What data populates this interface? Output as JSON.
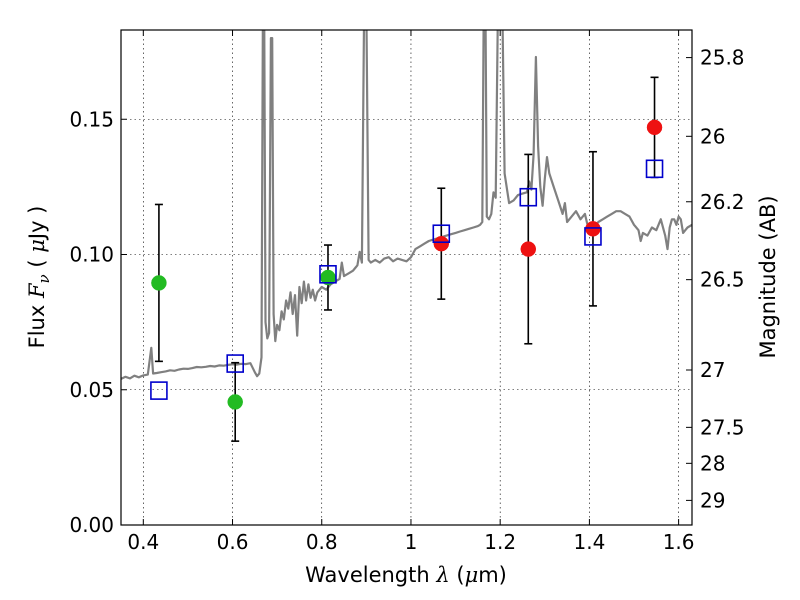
{
  "chart_data": {
    "type": "scatter",
    "xlabel": "Wavelength",
    "xlabel_symbol": "λ",
    "xlabel_unit_open": " (",
    "xlabel_unit_mu": "μ",
    "xlabel_unit_rest": "m)",
    "ylabel": "Flux",
    "ylabel_symbol": "F",
    "ylabel_symbol_sub": "ν",
    "ylabel_unit_open": " ( ",
    "ylabel_unit_mu": "μ",
    "ylabel_unit_rest": "Jy )",
    "ylabel_right": "Magnitude (AB)",
    "xlim": [
      0.35,
      1.63
    ],
    "ylim": [
      0.0,
      0.183
    ],
    "grid": true,
    "x_ticks": [
      0.4,
      0.6,
      0.8,
      1.0,
      1.2,
      1.4,
      1.6
    ],
    "x_tick_labels": [
      "0.4",
      "0.6",
      "0.8",
      "1",
      "1.2",
      "1.4",
      "1.6"
    ],
    "y_ticks": [
      0.0,
      0.05,
      0.1,
      0.15
    ],
    "y_tick_labels": [
      "0.00",
      "0.05",
      "0.10",
      "0.15"
    ],
    "mag_ticks": [
      {
        "label": "25.8",
        "flux": 0.1728
      },
      {
        "label": "26",
        "flux": 0.1437
      },
      {
        "label": "26.2",
        "flux": 0.1195
      },
      {
        "label": "26.5",
        "flux": 0.0907
      },
      {
        "label": "27",
        "flux": 0.0573
      },
      {
        "label": "27.5",
        "flux": 0.0361
      },
      {
        "label": "28",
        "flux": 0.0228
      },
      {
        "label": "29",
        "flux": 0.0091
      }
    ],
    "series": [
      {
        "name": "observed_green",
        "marker": "circle",
        "color": "#22bb22",
        "points": [
          {
            "x": 0.435,
            "y": 0.0895,
            "err": 0.029
          },
          {
            "x": 0.606,
            "y": 0.0455,
            "err": 0.0145
          },
          {
            "x": 0.814,
            "y": 0.0915,
            "err": 0.012
          }
        ]
      },
      {
        "name": "observed_red",
        "marker": "circle",
        "color": "#ee1111",
        "points": [
          {
            "x": 1.068,
            "y": 0.104,
            "err": 0.0205
          },
          {
            "x": 1.263,
            "y": 0.102,
            "err": 0.035
          },
          {
            "x": 1.408,
            "y": 0.1095,
            "err": 0.0285
          },
          {
            "x": 1.546,
            "y": 0.147,
            "err": 0.0185
          }
        ]
      },
      {
        "name": "model_synthetic",
        "marker": "square",
        "color": "#0000cc",
        "points": [
          {
            "x": 0.435,
            "y": 0.0495
          },
          {
            "x": 0.606,
            "y": 0.0595
          },
          {
            "x": 0.814,
            "y": 0.0925
          },
          {
            "x": 1.068,
            "y": 0.1075
          },
          {
            "x": 1.263,
            "y": 0.121
          },
          {
            "x": 1.408,
            "y": 0.1065
          },
          {
            "x": 1.546,
            "y": 0.1315
          }
        ]
      }
    ],
    "spectrum": {
      "color": "#808080",
      "points": [
        [
          0.35,
          0.054
        ],
        [
          0.36,
          0.0548
        ],
        [
          0.37,
          0.0542
        ],
        [
          0.38,
          0.0552
        ],
        [
          0.39,
          0.0546
        ],
        [
          0.4,
          0.0553
        ],
        [
          0.41,
          0.0556
        ],
        [
          0.418,
          0.0655
        ],
        [
          0.422,
          0.056
        ],
        [
          0.43,
          0.0562
        ],
        [
          0.44,
          0.0565
        ],
        [
          0.45,
          0.0568
        ],
        [
          0.46,
          0.0572
        ],
        [
          0.47,
          0.057
        ],
        [
          0.48,
          0.0575
        ],
        [
          0.49,
          0.0578
        ],
        [
          0.5,
          0.0577
        ],
        [
          0.51,
          0.058
        ],
        [
          0.52,
          0.0584
        ],
        [
          0.53,
          0.0583
        ],
        [
          0.54,
          0.0585
        ],
        [
          0.55,
          0.0588
        ],
        [
          0.56,
          0.0586
        ],
        [
          0.57,
          0.059
        ],
        [
          0.58,
          0.0589
        ],
        [
          0.59,
          0.0592
        ],
        [
          0.6,
          0.0594
        ],
        [
          0.61,
          0.0593
        ],
        [
          0.62,
          0.0596
        ],
        [
          0.63,
          0.0595
        ],
        [
          0.64,
          0.0598
        ],
        [
          0.65,
          0.0565
        ],
        [
          0.655,
          0.055
        ],
        [
          0.66,
          0.056
        ],
        [
          0.665,
          0.062
        ],
        [
          0.668,
          0.19
        ],
        [
          0.671,
          0.19
        ],
        [
          0.674,
          0.075
        ],
        [
          0.678,
          0.069
        ],
        [
          0.682,
          0.071
        ],
        [
          0.686,
          0.18
        ],
        [
          0.689,
          0.18
        ],
        [
          0.692,
          0.078
        ],
        [
          0.696,
          0.068
        ],
        [
          0.7,
          0.074
        ],
        [
          0.705,
          0.072
        ],
        [
          0.71,
          0.079
        ],
        [
          0.715,
          0.076
        ],
        [
          0.72,
          0.083
        ],
        [
          0.725,
          0.08
        ],
        [
          0.73,
          0.086
        ],
        [
          0.735,
          0.078
        ],
        [
          0.74,
          0.085
        ],
        [
          0.745,
          0.07
        ],
        [
          0.75,
          0.088
        ],
        [
          0.755,
          0.082
        ],
        [
          0.76,
          0.09
        ],
        [
          0.765,
          0.083
        ],
        [
          0.77,
          0.089
        ],
        [
          0.775,
          0.084
        ],
        [
          0.78,
          0.087
        ],
        [
          0.785,
          0.083
        ],
        [
          0.79,
          0.086
        ],
        [
          0.8,
          0.088
        ],
        [
          0.81,
          0.087
        ],
        [
          0.82,
          0.089
        ],
        [
          0.83,
          0.09
        ],
        [
          0.84,
          0.091
        ],
        [
          0.845,
          0.097
        ],
        [
          0.85,
          0.092
        ],
        [
          0.86,
          0.093
        ],
        [
          0.87,
          0.094
        ],
        [
          0.875,
          0.095
        ],
        [
          0.88,
          0.096
        ],
        [
          0.885,
          0.101
        ],
        [
          0.89,
          0.097
        ],
        [
          0.895,
          0.19
        ],
        [
          0.9,
          0.19
        ],
        [
          0.905,
          0.098
        ],
        [
          0.91,
          0.097
        ],
        [
          0.92,
          0.098
        ],
        [
          0.93,
          0.097
        ],
        [
          0.94,
          0.0985
        ],
        [
          0.95,
          0.099
        ],
        [
          0.96,
          0.0975
        ],
        [
          0.97,
          0.0985
        ],
        [
          0.98,
          0.098
        ],
        [
          0.99,
          0.0975
        ],
        [
          1.0,
          0.099
        ],
        [
          1.01,
          0.102
        ],
        [
          1.02,
          0.103
        ],
        [
          1.03,
          0.104
        ],
        [
          1.04,
          0.105
        ],
        [
          1.05,
          0.1055
        ],
        [
          1.06,
          0.106
        ],
        [
          1.07,
          0.1065
        ],
        [
          1.08,
          0.107
        ],
        [
          1.09,
          0.1075
        ],
        [
          1.1,
          0.108
        ],
        [
          1.11,
          0.1085
        ],
        [
          1.12,
          0.109
        ],
        [
          1.13,
          0.1095
        ],
        [
          1.14,
          0.11
        ],
        [
          1.15,
          0.1105
        ],
        [
          1.155,
          0.111
        ],
        [
          1.16,
          0.112
        ],
        [
          1.163,
          0.19
        ],
        [
          1.167,
          0.19
        ],
        [
          1.17,
          0.114
        ],
        [
          1.175,
          0.113
        ],
        [
          1.18,
          0.115
        ],
        [
          1.185,
          0.123
        ],
        [
          1.19,
          0.121
        ],
        [
          1.195,
          0.19
        ],
        [
          1.2,
          0.19
        ],
        [
          1.205,
          0.19
        ],
        [
          1.21,
          0.13
        ],
        [
          1.22,
          0.119
        ],
        [
          1.23,
          0.12
        ],
        [
          1.24,
          0.122
        ],
        [
          1.25,
          0.1225
        ],
        [
          1.26,
          0.123
        ],
        [
          1.265,
          0.127
        ],
        [
          1.27,
          0.124
        ],
        [
          1.275,
          0.137
        ],
        [
          1.28,
          0.173
        ],
        [
          1.285,
          0.14
        ],
        [
          1.29,
          0.125
        ],
        [
          1.295,
          0.118
        ],
        [
          1.3,
          0.128
        ],
        [
          1.305,
          0.136
        ],
        [
          1.31,
          0.13
        ],
        [
          1.32,
          0.125
        ],
        [
          1.33,
          0.12
        ],
        [
          1.34,
          0.115
        ],
        [
          1.345,
          0.119
        ],
        [
          1.35,
          0.112
        ],
        [
          1.36,
          0.114
        ],
        [
          1.37,
          0.116
        ],
        [
          1.38,
          0.113
        ],
        [
          1.39,
          0.115
        ],
        [
          1.4,
          0.108
        ],
        [
          1.41,
          0.11
        ],
        [
          1.42,
          0.112
        ],
        [
          1.43,
          0.113
        ],
        [
          1.44,
          0.114
        ],
        [
          1.45,
          0.115
        ],
        [
          1.46,
          0.116
        ],
        [
          1.47,
          0.116
        ],
        [
          1.48,
          0.115
        ],
        [
          1.49,
          0.114
        ],
        [
          1.5,
          0.111
        ],
        [
          1.51,
          0.109
        ],
        [
          1.515,
          0.105
        ],
        [
          1.52,
          0.108
        ],
        [
          1.53,
          0.107
        ],
        [
          1.54,
          0.11
        ],
        [
          1.55,
          0.109
        ],
        [
          1.56,
          0.113
        ],
        [
          1.57,
          0.107
        ],
        [
          1.575,
          0.102
        ],
        [
          1.58,
          0.11
        ],
        [
          1.585,
          0.113
        ],
        [
          1.59,
          0.113
        ],
        [
          1.595,
          0.111
        ],
        [
          1.6,
          0.114
        ],
        [
          1.605,
          0.113
        ],
        [
          1.61,
          0.108
        ],
        [
          1.615,
          0.109
        ],
        [
          1.62,
          0.11
        ],
        [
          1.63,
          0.111
        ]
      ]
    }
  }
}
